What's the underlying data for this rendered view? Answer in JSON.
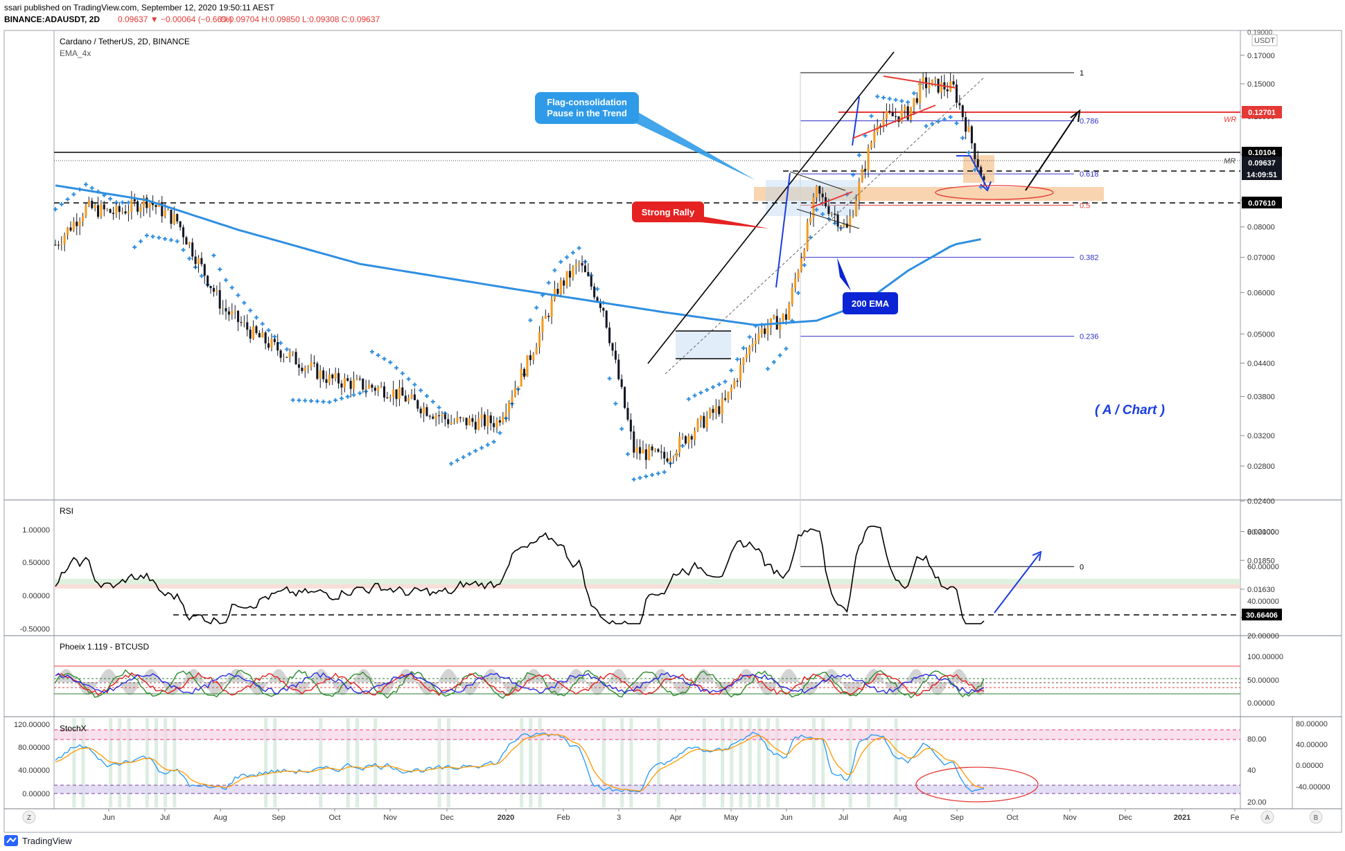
{
  "header": {
    "line1": "ssari published on TradingView.com, September 12, 2020 19:50:11 AEST",
    "symbol": "BINANCE:ADAUSDT, 2D",
    "price": "0.09637",
    "change": "−0.00064 (−0.66%)",
    "ohlc": "O:0.09704 H:0.09850 L:0.09308 C:0.09637"
  },
  "main_pane": {
    "title": "Cardano / TetherUS, 2D, BINANCE",
    "indicator": "EMA_4x",
    "currency": "USDT",
    "watermark": "( A / Chart )"
  },
  "price_axis": {
    "ticks": [
      "0.17000",
      "0.15000",
      "0.13000",
      "0.11000",
      "0.09000",
      "0.08000",
      "0.07000",
      "0.06000",
      "0.05000",
      "0.04400",
      "0.03800",
      "0.03200",
      "0.02800",
      "0.02400",
      "0.02100",
      "0.01850",
      "0.01630",
      "0.01440"
    ],
    "top_tick": "0.19000",
    "badges": {
      "wr": "0.12701",
      "level1": "0.10104",
      "last": "0.09637",
      "timer": "14:09:51",
      "support": "0.07610"
    }
  },
  "time_axis": {
    "labels": [
      "Jun",
      "Jul",
      "Aug",
      "Sep",
      "Oct",
      "Nov",
      "Dec",
      "2020",
      "Feb",
      "3",
      "Apr",
      "May",
      "Jun",
      "Jul",
      "Aug",
      "Sep",
      "Oct",
      "Nov",
      "Dec",
      "2021",
      "Fe"
    ],
    "bold": [
      "2020",
      "2021"
    ]
  },
  "fib_levels": [
    {
      "label": "1",
      "price": 0.1575,
      "color": "#000000"
    },
    {
      "label": "0.786",
      "price": 0.1275,
      "color": "#3030c8"
    },
    {
      "label": "0.618",
      "price": 0.101,
      "color": "#3030c8"
    },
    {
      "label": "0.5",
      "price": 0.088,
      "color": "#e53935"
    },
    {
      "label": "0.382",
      "price": 0.07,
      "color": "#3030c8"
    },
    {
      "label": "0.236",
      "price": 0.0495,
      "color": "#3030c8"
    },
    {
      "label": "0",
      "price": 0.018,
      "color": "#000000"
    }
  ],
  "annotations": {
    "flag": [
      "Flag-consolidation",
      "Pause in the Trend"
    ],
    "rally": "Strong Rally",
    "ema200": "200 EMA",
    "wr": "WR",
    "mr": "MR"
  },
  "rsi_pane": {
    "title": "RSI",
    "left_ticks": [
      "1.00000",
      "0.50000",
      "0.00000",
      "-0.50000"
    ],
    "right_ticks": [
      "80.00000",
      "60.00000",
      "40.00000",
      "20.00000"
    ],
    "badge": "30.66406"
  },
  "phoenix_pane": {
    "title": "Phoeix 1.119 - BTCUSD",
    "right_ticks": [
      "100.00000",
      "50.00000",
      "0.00000"
    ]
  },
  "stoch_pane": {
    "title": "StochX",
    "left_ticks": [
      "120.00000",
      "80.00000",
      "40.00000",
      "0.00000"
    ],
    "mid_ticks": [
      "80.00",
      "40",
      "20.00"
    ],
    "right_ticks": [
      "80.00000",
      "40.00000",
      "0.00000",
      "-40.00000"
    ]
  },
  "footer": {
    "brand": "TradingView",
    "left_btn": "Z",
    "a_btn": "A",
    "b_btn": "B"
  },
  "chart_data": {
    "type": "candlestick",
    "title": "Cardano / TetherUS, 2D, BINANCE",
    "series": [
      {
        "name": "ADAUSDT",
        "close_points": [
          [
            0,
            0.074
          ],
          [
            10,
            0.087
          ],
          [
            20,
            0.085
          ],
          [
            30,
            0.09
          ],
          [
            40,
            0.082
          ],
          [
            55,
            0.056
          ],
          [
            65,
            0.05
          ],
          [
            75,
            0.046
          ],
          [
            90,
            0.041
          ],
          [
            110,
            0.039
          ],
          [
            130,
            0.034
          ],
          [
            145,
            0.034
          ],
          [
            155,
            0.044
          ],
          [
            165,
            0.061
          ],
          [
            172,
            0.068
          ],
          [
            180,
            0.056
          ],
          [
            190,
            0.03
          ],
          [
            200,
            0.029
          ],
          [
            210,
            0.033
          ],
          [
            220,
            0.037
          ],
          [
            230,
            0.05
          ],
          [
            240,
            0.054
          ],
          [
            250,
            0.093
          ],
          [
            260,
            0.079
          ],
          [
            270,
            0.128
          ],
          [
            280,
            0.132
          ],
          [
            285,
            0.15
          ],
          [
            295,
            0.147
          ],
          [
            300,
            0.121
          ],
          [
            305,
            0.097
          ]
        ]
      },
      {
        "name": "EMA 200",
        "points": [
          [
            0,
            0.096
          ],
          [
            30,
            0.09
          ],
          [
            60,
            0.079
          ],
          [
            100,
            0.068
          ],
          [
            150,
            0.061
          ],
          [
            200,
            0.055
          ],
          [
            230,
            0.052
          ],
          [
            250,
            0.053
          ],
          [
            265,
            0.057
          ],
          [
            280,
            0.066
          ],
          [
            295,
            0.074
          ],
          [
            305,
            0.076
          ]
        ]
      }
    ],
    "ylim": [
      0.0144,
      0.19
    ],
    "yscale": "log"
  }
}
